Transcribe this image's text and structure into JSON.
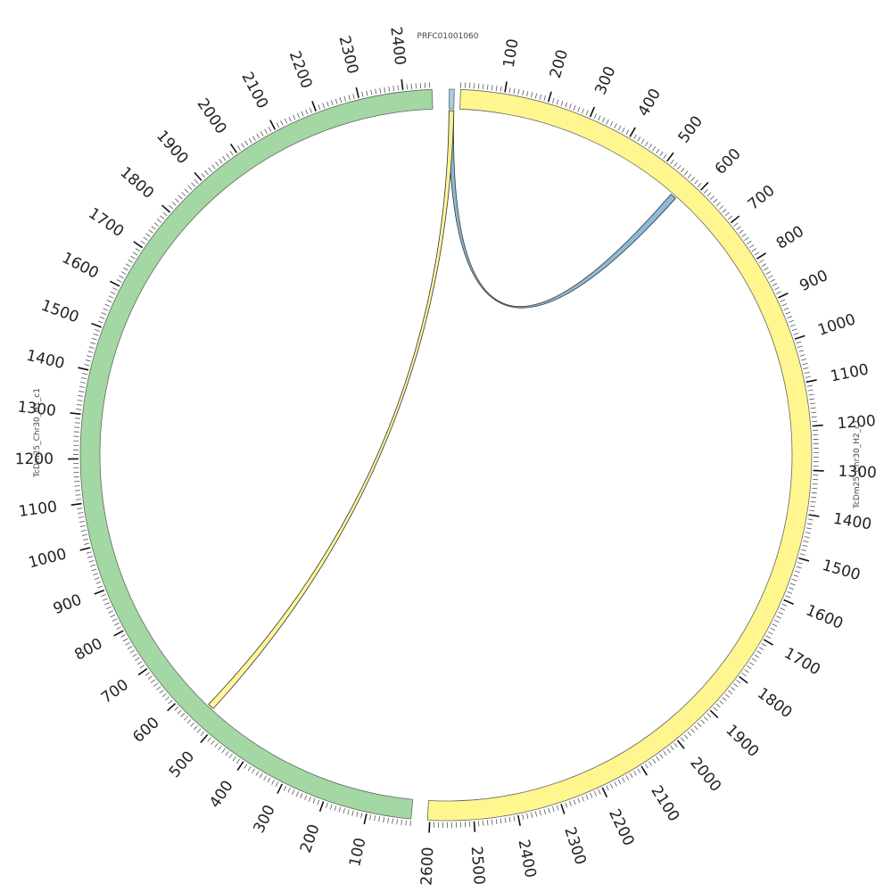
{
  "diagram": {
    "type": "circos",
    "segments": [
      {
        "id": "seg-prfc",
        "name": "PRFC01001060",
        "length": 12,
        "start_deg": 0.5,
        "end_deg": 1.3,
        "color": "#a6cee3",
        "label_position": "top",
        "major_tick": 0,
        "tick_labels": []
      },
      {
        "id": "seg-h2",
        "name": "TcDm25_Chr30_H2_c1",
        "length": 2605,
        "start_deg": 2.3,
        "end_deg": 182.9,
        "color": "#fff68f",
        "label_position": "right",
        "major_tick": 100,
        "tick_labels": [
          "100",
          "200",
          "300",
          "400",
          "500",
          "600",
          "700",
          "800",
          "900",
          "1000",
          "1100",
          "1200",
          "1300",
          "1400",
          "1500",
          "1600",
          "1700",
          "1800",
          "1900",
          "2000",
          "2100",
          "2200",
          "2300",
          "2400",
          "2500",
          "2600"
        ]
      },
      {
        "id": "seg-h1",
        "name": "TcDm25_Chr30_H1_c1",
        "length": 2465,
        "start_deg": 185.5,
        "end_deg": 357.8,
        "color": "#a3d7a3",
        "label_position": "left",
        "major_tick": 100,
        "tick_labels": [
          "100",
          "200",
          "300",
          "400",
          "500",
          "600",
          "700",
          "800",
          "900",
          "1000",
          "1100",
          "1200",
          "1300",
          "1400",
          "1500",
          "1600",
          "1700",
          "1800",
          "1900",
          "2000",
          "2100",
          "2200",
          "2300",
          "2400"
        ]
      }
    ],
    "links": [
      {
        "id": "link-blue",
        "from": {
          "segment": "seg-prfc",
          "start": 0,
          "end": 12
        },
        "to": {
          "segment": "seg-h2",
          "start": 555,
          "end": 570
        },
        "color": "#7fb3d5"
      },
      {
        "id": "link-yellow",
        "from": {
          "segment": "seg-prfc",
          "start": 0,
          "end": 12
        },
        "to": {
          "segment": "seg-h1",
          "start": 530,
          "end": 545
        },
        "color": "#fff68f"
      }
    ]
  }
}
